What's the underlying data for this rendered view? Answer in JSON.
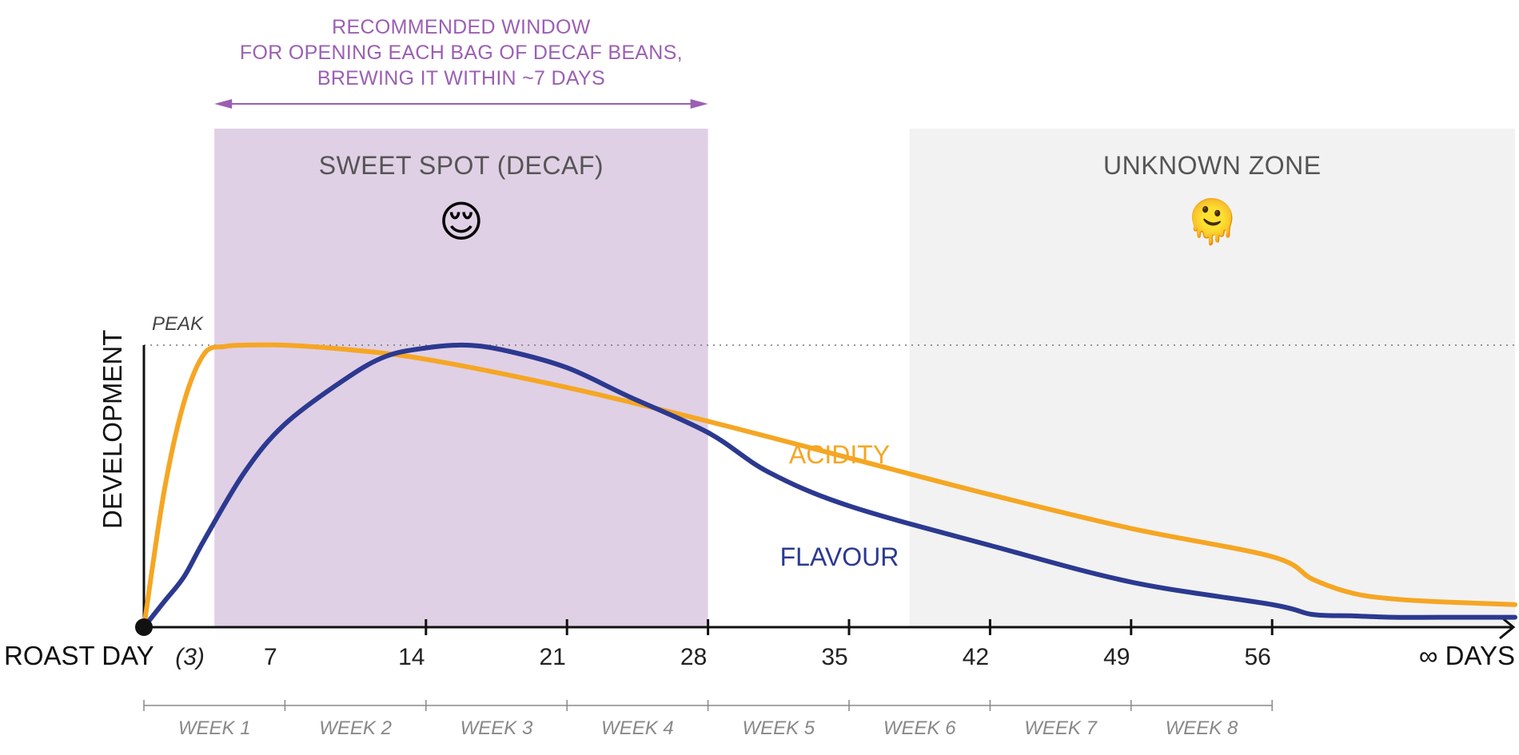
{
  "chart_data": {
    "type": "line",
    "ylabel": "DEVELOPMENT",
    "xlabel_start": "ROAST DAY",
    "xlabel_end": "∞ DAYS",
    "peak_label": "PEAK",
    "x_range": [
      0,
      98
    ],
    "y_range": [
      0,
      1
    ],
    "x_ticks": [
      {
        "x": 3,
        "label": "(3)",
        "italic": true,
        "tick": false
      },
      {
        "x": 7,
        "label": "7",
        "tick": false
      },
      {
        "x": 14,
        "label": "14",
        "tick": true
      },
      {
        "x": 21,
        "label": "21",
        "tick": true
      },
      {
        "x": 28,
        "label": "28",
        "tick": true
      },
      {
        "x": 35,
        "label": "35",
        "tick": true
      },
      {
        "x": 42,
        "label": "42",
        "tick": true
      },
      {
        "x": 49,
        "label": "49",
        "tick": true
      },
      {
        "x": 56,
        "label": "56",
        "tick": true
      }
    ],
    "weeks": [
      "WEEK 1",
      "WEEK 2",
      "WEEK 3",
      "WEEK 4",
      "WEEK 5",
      "WEEK 6",
      "WEEK 7",
      "WEEK 8"
    ],
    "zones": [
      {
        "name": "SWEET SPOT (DECAF)",
        "emoji": "😌",
        "x_start": 3.5,
        "x_end": 28,
        "color": "#e0d0e5"
      },
      {
        "name": "UNKNOWN ZONE",
        "emoji": "🫠",
        "x_start": 38,
        "x_end": 98,
        "color": "#f2f2f2"
      }
    ],
    "window_annotation": {
      "lines": [
        "RECOMMENDED WINDOW",
        "FOR OPENING EACH BAG OF DECAF BEANS,",
        "BREWING IT WITHIN ~7 DAYS"
      ],
      "x_start": 3.5,
      "x_end": 28,
      "color": "#9b5fb3"
    },
    "series": [
      {
        "name": "ACIDITY",
        "color": "#f5a623",
        "points": [
          [
            0,
            0
          ],
          [
            1,
            0.48
          ],
          [
            2,
            0.8
          ],
          [
            3,
            0.97
          ],
          [
            4,
            0.995
          ],
          [
            5,
            1.0
          ],
          [
            7,
            1.0
          ],
          [
            10,
            0.985
          ],
          [
            14,
            0.95
          ],
          [
            21,
            0.85
          ],
          [
            28,
            0.73
          ],
          [
            35,
            0.6
          ],
          [
            42,
            0.47
          ],
          [
            49,
            0.35
          ],
          [
            56,
            0.25
          ],
          [
            63,
            0.17
          ],
          [
            70,
            0.12
          ],
          [
            77,
            0.1
          ],
          [
            85,
            0.09
          ],
          [
            98,
            0.08
          ]
        ]
      },
      {
        "name": "FLAVOUR",
        "color": "#2b3990",
        "points": [
          [
            0,
            0
          ],
          [
            1,
            0.09
          ],
          [
            2,
            0.18
          ],
          [
            3,
            0.31
          ],
          [
            5,
            0.55
          ],
          [
            7,
            0.72
          ],
          [
            10,
            0.88
          ],
          [
            12,
            0.96
          ],
          [
            14,
            0.99
          ],
          [
            16,
            1.0
          ],
          [
            18,
            0.98
          ],
          [
            21,
            0.92
          ],
          [
            24,
            0.82
          ],
          [
            28,
            0.69
          ],
          [
            31,
            0.55
          ],
          [
            35,
            0.43
          ],
          [
            42,
            0.29
          ],
          [
            49,
            0.16
          ],
          [
            56,
            0.08
          ],
          [
            63,
            0.045
          ],
          [
            70,
            0.04
          ],
          [
            77,
            0.035
          ],
          [
            85,
            0.035
          ],
          [
            98,
            0.035
          ]
        ]
      }
    ]
  }
}
